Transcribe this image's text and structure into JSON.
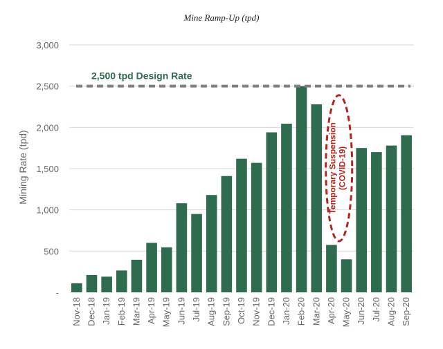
{
  "chart_data": {
    "type": "bar",
    "title": "Mine Ramp-Up (tpd)",
    "ylabel": "Mining Rate (tpd)",
    "xlabel": "",
    "ylim": [
      0,
      3000
    ],
    "yticks": [
      0,
      500,
      1000,
      1500,
      2000,
      2500,
      3000
    ],
    "ytick_labels": [
      "-",
      "500",
      "1,000",
      "1,500",
      "2,000",
      "2,500",
      "3,000"
    ],
    "grid": true,
    "categories": [
      "Nov-18",
      "Dec-18",
      "Jan-19",
      "Feb-19",
      "Mar-19",
      "Apr-19",
      "May-19",
      "Jun-19",
      "Jul-19",
      "Aug-19",
      "Sep-19",
      "Oct-19",
      "Nov-19",
      "Dec-19",
      "Jan-20",
      "Feb-20",
      "Mar-20",
      "Apr-20",
      "May-20",
      "Jun-20",
      "Jul-20",
      "Aug-20",
      "Sep-20"
    ],
    "values": [
      110,
      210,
      190,
      265,
      395,
      600,
      545,
      1080,
      950,
      1180,
      1410,
      1620,
      1570,
      1940,
      2045,
      2500,
      2280,
      575,
      400,
      1750,
      1700,
      1780,
      1905
    ],
    "bar_color": "#2e6b4f",
    "reference_line": {
      "label": "2,500 tpd Design Rate",
      "value": 2500,
      "color": "#808080"
    },
    "annotation": {
      "lines": [
        "Temporary Suspension",
        "(COVID-19)"
      ],
      "color": "#b3261e",
      "categories": [
        "Apr-20",
        "May-20"
      ]
    }
  }
}
